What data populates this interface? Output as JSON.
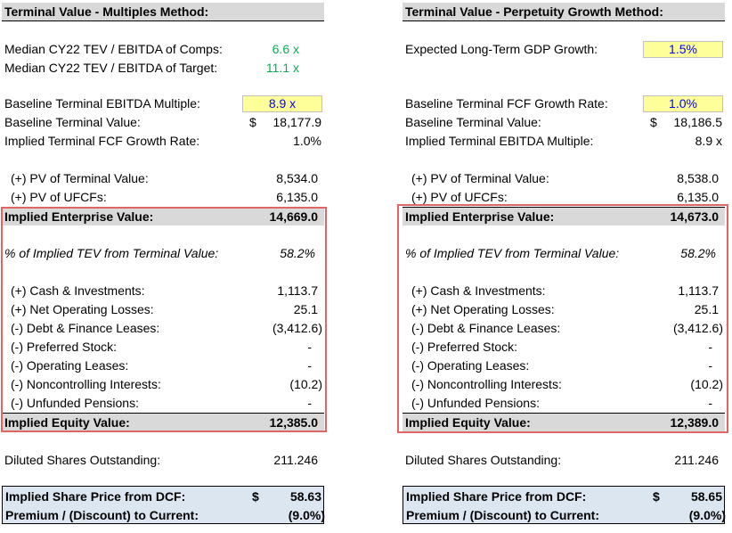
{
  "left": {
    "title": "Terminal Value - Multiples Method:",
    "median_comps_label": "Median CY22 TEV / EBITDA of Comps:",
    "median_comps_value": "6.6 x",
    "median_target_label": "Median CY22 TEV / EBITDA of Target:",
    "median_target_value": "11.1 x",
    "baseline_multiple_label": "Baseline Terminal EBITDA Multiple:",
    "baseline_multiple_value": "8.9 x",
    "baseline_tv_label": "Baseline Terminal Value:",
    "baseline_tv_currency": "$",
    "baseline_tv_value": "18,177.9",
    "implied_metric_label": "Implied Terminal FCF Growth Rate:",
    "implied_metric_value": "1.0%",
    "pv_tv_label": "(+) PV of Terminal Value:",
    "pv_tv_value": "8,534.0",
    "pv_ufcf_label": "(+) PV of UFCFs:",
    "pv_ufcf_value": "6,135.0",
    "iev_label": "Implied Enterprise Value:",
    "iev_value": "14,669.0",
    "pct_tv_label": "% of Implied TEV from Terminal Value:",
    "pct_tv_value": "58.2%",
    "cash_label": "(+) Cash & Investments:",
    "cash_value": "1,113.7",
    "nol_label": "(+) Net Operating Losses:",
    "nol_value": "25.1",
    "debt_label": "(-) Debt & Finance Leases:",
    "debt_value": "(3,412.6)",
    "pref_label": "(-) Preferred Stock:",
    "pref_value": "-",
    "oplease_label": "(-) Operating Leases:",
    "oplease_value": "-",
    "nci_label": "(-) Noncontrolling Interests:",
    "nci_value": "(10.2)",
    "pension_label": "(-) Unfunded Pensions:",
    "pension_value": "-",
    "equity_label": "Implied Equity Value:",
    "equity_value": "12,385.0",
    "shares_label": "Diluted Shares Outstanding:",
    "shares_value": "211.246",
    "price_label": "Implied Share Price from DCF:",
    "price_currency": "$",
    "price_value": "58.63",
    "premium_label": "Premium / (Discount) to Current:",
    "premium_value": "(9.0%)"
  },
  "right": {
    "title": "Terminal Value - Perpetuity Growth Method:",
    "gdp_label": "Expected Long-Term GDP Growth:",
    "gdp_value": "1.5%",
    "baseline_growth_label": "Baseline Terminal FCF Growth Rate:",
    "baseline_growth_value": "1.0%",
    "baseline_tv_label": "Baseline Terminal Value:",
    "baseline_tv_currency": "$",
    "baseline_tv_value": "18,186.5",
    "implied_metric_label": "Implied Terminal EBITDA Multiple:",
    "implied_metric_value": "8.9 x",
    "pv_tv_label": "(+) PV of Terminal Value:",
    "pv_tv_value": "8,538.0",
    "pv_ufcf_label": "(+) PV of UFCFs:",
    "pv_ufcf_value": "6,135.0",
    "iev_label": "Implied Enterprise Value:",
    "iev_value": "14,673.0",
    "pct_tv_label": "% of Implied TEV from Terminal Value:",
    "pct_tv_value": "58.2%",
    "cash_label": "(+) Cash & Investments:",
    "cash_value": "1,113.7",
    "nol_label": "(+) Net Operating Losses:",
    "nol_value": "25.1",
    "debt_label": "(-) Debt & Finance Leases:",
    "debt_value": "(3,412.6)",
    "pref_label": "(-) Preferred Stock:",
    "pref_value": "-",
    "oplease_label": "(-) Operating Leases:",
    "oplease_value": "-",
    "nci_label": "(-) Noncontrolling Interests:",
    "nci_value": "(10.2)",
    "pension_label": "(-) Unfunded Pensions:",
    "pension_value": "-",
    "equity_label": "Implied Equity Value:",
    "equity_value": "12,389.0",
    "shares_label": "Diluted Shares Outstanding:",
    "shares_value": "211.246",
    "price_label": "Implied Share Price from DCF:",
    "price_currency": "$",
    "price_value": "58.65",
    "premium_label": "Premium / (Discount) to Current:",
    "premium_value": "(9.0%)"
  },
  "colors": {
    "header_bg": "#d9d9d9",
    "input_bg": "#ffff99",
    "input_text": "#0000ff",
    "green_text": "#00b050",
    "highlight_border": "#e06666",
    "price_box_bg": "#dce6f1"
  }
}
